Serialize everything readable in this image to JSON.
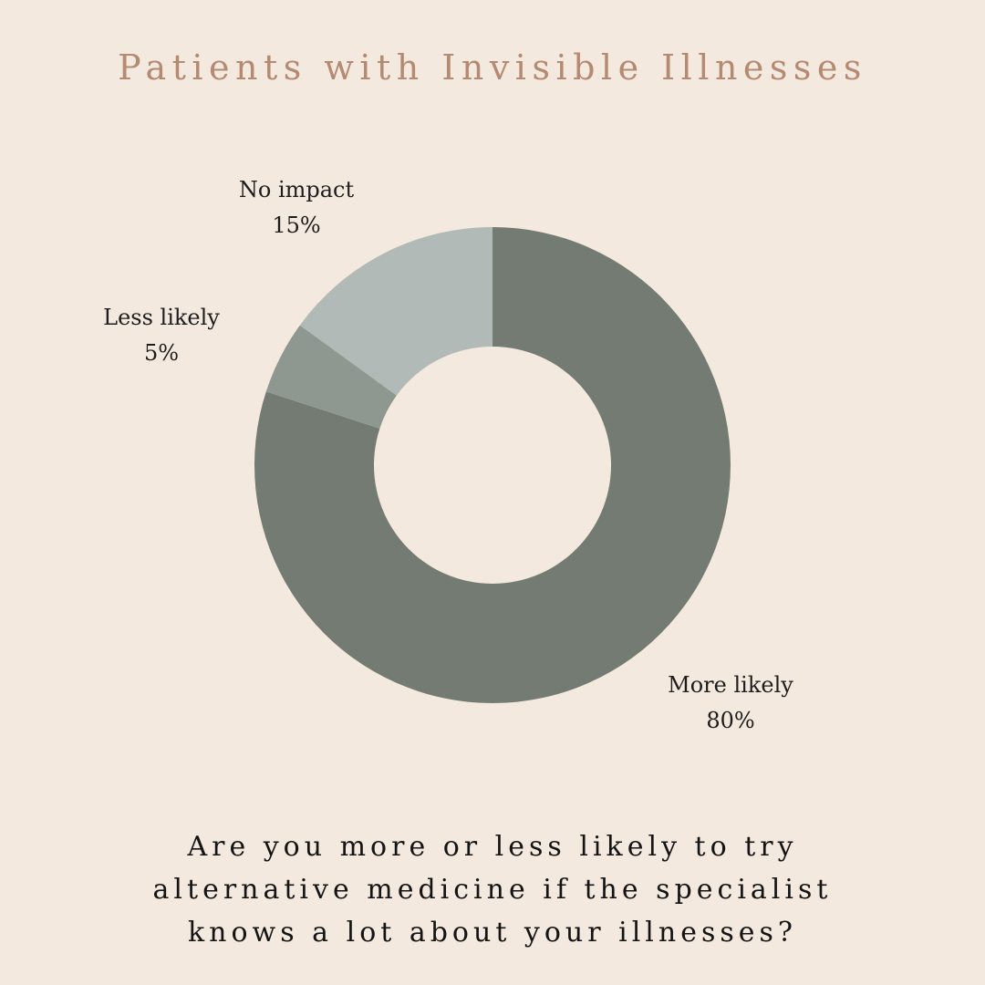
{
  "title": "Patients with Invisible Illnesses",
  "question_lines": [
    "Are you more or less likely to try",
    "alternative medicine if the specialist",
    "knows a lot about your illnesses?"
  ],
  "chart_data": {
    "type": "pie",
    "variant": "donut",
    "title": "Patients with Invisible Illnesses",
    "slices": [
      {
        "label": "More likely",
        "value": 80,
        "value_label": "80%",
        "color": "#737b73"
      },
      {
        "label": "Less likely",
        "value": 5,
        "value_label": "5%",
        "color": "#8e9891"
      },
      {
        "label": "No impact",
        "value": 15,
        "value_label": "15%",
        "color": "#b1bab6"
      }
    ]
  }
}
